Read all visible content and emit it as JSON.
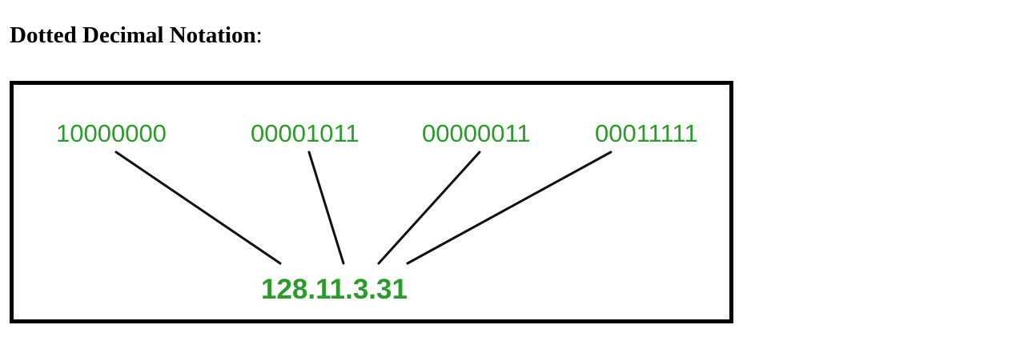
{
  "heading": {
    "title": "Dotted Decimal Notation",
    "suffix": ":"
  },
  "diagram": {
    "octets": [
      {
        "binary": "10000000"
      },
      {
        "binary": "00001011"
      },
      {
        "binary": "00000011"
      },
      {
        "binary": "00011111"
      }
    ],
    "dotted_decimal": "128.11.3.31",
    "colors": {
      "text": "#2e9a2e",
      "lines": "#111111",
      "border": "#000000"
    }
  }
}
